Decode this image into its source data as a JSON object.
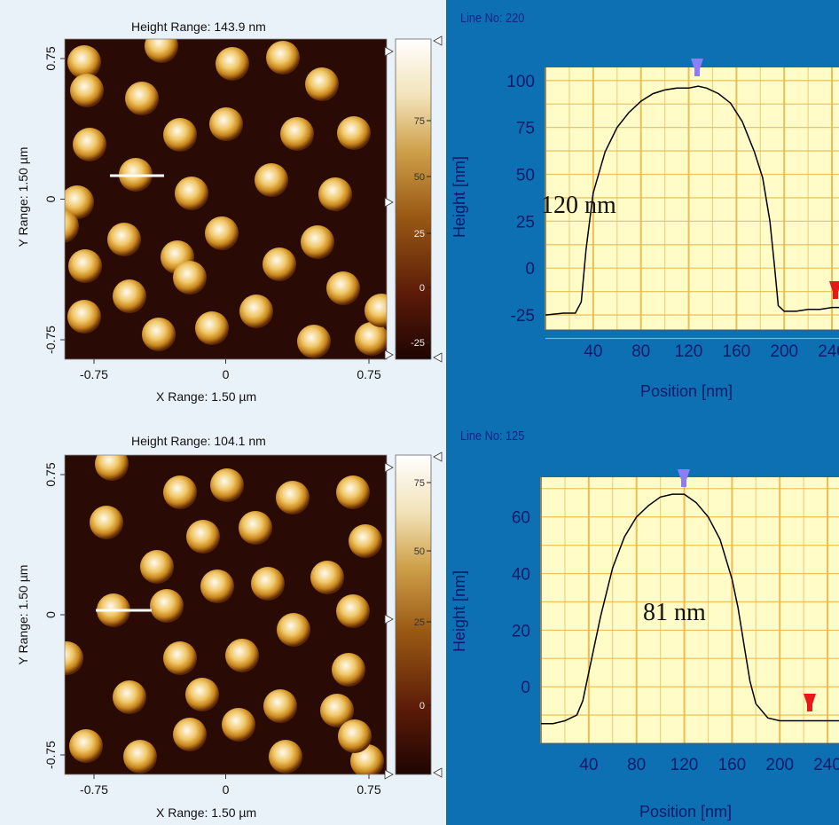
{
  "colors": {
    "background_left": "#eaf2f9",
    "background_right": "#0c70b3",
    "afm_low": "#2a0a04",
    "afm_high": "#ffffff",
    "plot_area": "#fffcc8",
    "grid": "#e8b84a",
    "curve": "#000000",
    "top_marker": "#8b7ff5",
    "side_marker": "#e81818",
    "line_no_text": "#17238a",
    "profile_text": "#0e1a6b"
  },
  "afm_panels": [
    {
      "height_range": "Height Range:  143.9 nm",
      "x_range": "X Range:  1.50 µm",
      "y_range": "Y Range:  1.50 µm",
      "x_ticks": [
        "-0.75",
        "0",
        "0.75"
      ],
      "y_ticks": [
        "0.75",
        "0",
        "-0.75"
      ],
      "colorbar_ticks": [
        "75",
        "50",
        "25",
        "0",
        "-25"
      ]
    },
    {
      "height_range": "Height Range:  104.1 nm",
      "x_range": "X Range:  1.50 µm",
      "y_range": "Y Range:  1.50 µm",
      "x_ticks": [
        "-0.75",
        "0",
        "0.75"
      ],
      "y_ticks": [
        "0.75",
        "0",
        "-0.75"
      ],
      "colorbar_ticks": [
        "75",
        "50",
        "25",
        "0"
      ]
    }
  ],
  "chart_data": [
    {
      "type": "line",
      "title": "Line No: 220",
      "xlabel": "Position [nm]",
      "ylabel": "Height [nm]",
      "annotation": "120 nm",
      "x_ticks": [
        40,
        80,
        120,
        160,
        200,
        240
      ],
      "y_ticks": [
        100,
        75,
        50,
        25,
        0,
        -25
      ],
      "xlim": [
        0,
        260
      ],
      "ylim": [
        -33,
        107
      ],
      "grid": true,
      "x": [
        0,
        15,
        25,
        30,
        34,
        40,
        50,
        60,
        70,
        80,
        90,
        100,
        110,
        120,
        128,
        135,
        145,
        155,
        165,
        170,
        175,
        182,
        188,
        192,
        195,
        200,
        210,
        220,
        230,
        240,
        250,
        260
      ],
      "y": [
        -25,
        -24,
        -24,
        -18,
        10,
        40,
        62,
        75,
        83,
        89,
        93,
        95,
        96,
        96,
        97,
        96,
        93,
        88,
        78,
        70,
        62,
        48,
        25,
        0,
        -20,
        -23,
        -23,
        -22,
        -22,
        -21,
        -21,
        -21
      ]
    },
    {
      "type": "line",
      "title": "Line No: 125",
      "xlabel": "Position [nm]",
      "ylabel": "Height [nm]",
      "annotation": "81 nm",
      "x_ticks": [
        40,
        80,
        120,
        160,
        200,
        240
      ],
      "y_ticks": [
        60,
        40,
        20,
        0
      ],
      "xlim": [
        0,
        260
      ],
      "ylim": [
        -20,
        74
      ],
      "grid": true,
      "x": [
        0,
        10,
        20,
        30,
        35,
        40,
        50,
        60,
        70,
        80,
        90,
        100,
        110,
        120,
        130,
        140,
        150,
        160,
        165,
        170,
        175,
        180,
        190,
        200,
        210,
        220,
        230,
        240,
        250,
        260
      ],
      "y": [
        -13,
        -13,
        -12,
        -10,
        -5,
        5,
        25,
        42,
        53,
        60,
        64,
        67,
        68,
        68,
        65,
        60,
        52,
        38,
        28,
        15,
        2,
        -6,
        -11,
        -12,
        -12,
        -12,
        -12,
        -12,
        -12,
        -12
      ]
    }
  ]
}
